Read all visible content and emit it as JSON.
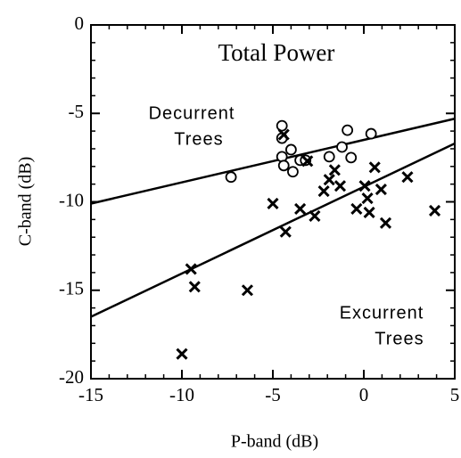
{
  "chart_data": {
    "type": "scatter",
    "title": "Total Power",
    "x_label": "P-band (dB)",
    "y_label": "C-band (dB)",
    "xlim": [
      -15,
      5
    ],
    "ylim": [
      -20,
      0
    ],
    "xticks": [
      -15,
      -10,
      -5,
      0,
      5
    ],
    "yticks": [
      -20,
      -15,
      -10,
      -5,
      0
    ],
    "annotations": [
      [
        "Decurrent",
        "Trees"
      ],
      [
        "Excurrent",
        "Trees"
      ]
    ],
    "series": [
      {
        "marker": "circle",
        "color": "#000",
        "x": [
          -7.3,
          -4.5,
          -4.5,
          -4.0,
          -4.5,
          -4.4,
          -3.9,
          -3.5,
          -3.2,
          -1.2,
          -0.9,
          -0.7,
          -1.9,
          0.4
        ],
        "y": [
          -8.6,
          -5.7,
          -6.4,
          -7.05,
          -7.45,
          -7.95,
          -8.3,
          -7.65,
          -7.65,
          -6.9,
          -5.95,
          -7.5,
          -7.45,
          -6.15
        ]
      },
      {
        "marker": "cross",
        "color": "#000",
        "x": [
          -4.4,
          -3.1,
          -5.0,
          -3.5,
          -4.3,
          -2.7,
          -2.2,
          -1.9,
          -1.6,
          -1.3,
          -0.4,
          0.05,
          0.2,
          0.3,
          0.6,
          0.95,
          1.2,
          2.4,
          3.9,
          -9.5,
          -9.3,
          -6.4,
          -10.0
        ],
        "y": [
          -6.2,
          -7.7,
          -10.1,
          -10.4,
          -11.7,
          -10.8,
          -9.4,
          -8.75,
          -8.2,
          -9.1,
          -10.4,
          -9.1,
          -9.8,
          -10.6,
          -8.05,
          -9.3,
          -11.2,
          -8.6,
          -10.5,
          -13.8,
          -14.8,
          -15.0,
          -18.6
        ]
      }
    ],
    "fit_lines": [
      {
        "x": [
          -15,
          5
        ],
        "y": [
          -10.1,
          -5.3
        ]
      },
      {
        "x": [
          -15,
          5
        ],
        "y": [
          -16.5,
          -6.7
        ]
      }
    ]
  }
}
